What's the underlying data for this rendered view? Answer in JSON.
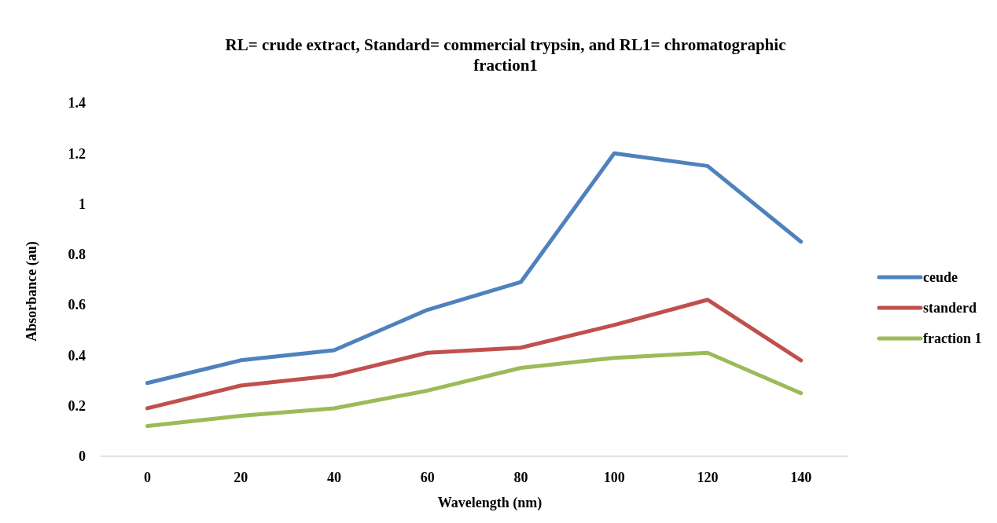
{
  "chart_data": {
    "type": "line",
    "title": "RL= crude extract, Standard= commercial trypsin, and RL1= chromatographic fraction1",
    "xlabel": "Wavelength (nm)",
    "ylabel": "Absorbance (au)",
    "categories": [
      "0",
      "20",
      "40",
      "60",
      "80",
      "100",
      "120",
      "140"
    ],
    "series": [
      {
        "name": "ceude",
        "color": "#4f81bd",
        "values": [
          0.29,
          0.38,
          0.42,
          0.58,
          0.69,
          1.2,
          1.15,
          0.85
        ]
      },
      {
        "name": "standerd",
        "color": "#c0504d",
        "values": [
          0.19,
          0.28,
          0.32,
          0.41,
          0.43,
          0.52,
          0.62,
          0.38
        ]
      },
      {
        "name": "fraction 1",
        "color": "#9bbb59",
        "values": [
          0.12,
          0.16,
          0.19,
          0.26,
          0.35,
          0.39,
          0.41,
          0.25
        ]
      }
    ],
    "ylim": [
      0,
      1.4
    ],
    "yticks": [
      0,
      0.2,
      0.4,
      0.6,
      0.8,
      1,
      1.2,
      1.4
    ],
    "grid": false,
    "legend": "right",
    "marker": "none",
    "line_style": "solid"
  }
}
